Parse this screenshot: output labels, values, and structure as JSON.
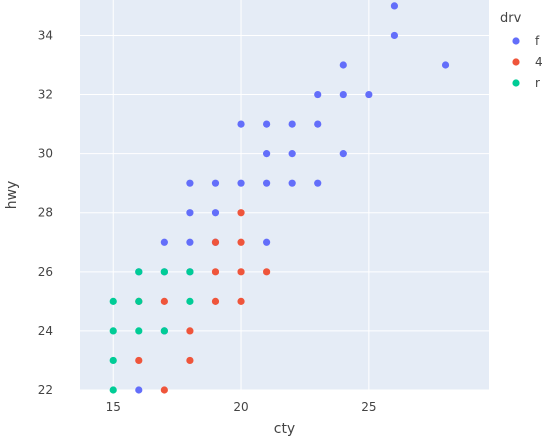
{
  "chart_data": {
    "type": "scatter",
    "title": "",
    "xlabel": "cty",
    "ylabel": "hwy",
    "xlim": [
      13.7,
      29.7
    ],
    "ylim": [
      22,
      35.2
    ],
    "xticks": [
      15,
      20,
      25
    ],
    "yticks": [
      22,
      24,
      26,
      28,
      30,
      32,
      34
    ],
    "grid": true,
    "legend": {
      "title": "drv",
      "placement": "right"
    },
    "colors": {
      "plot_bg": "#e5ecf6",
      "f": "#636efa",
      "4": "#ef553b",
      "r": "#00cc96"
    },
    "series": [
      {
        "name": "f",
        "color": "#636efa",
        "points": [
          [
            26,
            35
          ],
          [
            26,
            34
          ],
          [
            28,
            33
          ],
          [
            24,
            33
          ],
          [
            23,
            32
          ],
          [
            24,
            32
          ],
          [
            25,
            32
          ],
          [
            20,
            31
          ],
          [
            21,
            31
          ],
          [
            22,
            31
          ],
          [
            23,
            31
          ],
          [
            21,
            30
          ],
          [
            22,
            30
          ],
          [
            24,
            30
          ],
          [
            18,
            29
          ],
          [
            19,
            29
          ],
          [
            20,
            29
          ],
          [
            21,
            29
          ],
          [
            22,
            29
          ],
          [
            23,
            29
          ],
          [
            18,
            28
          ],
          [
            19,
            28
          ],
          [
            17,
            27
          ],
          [
            18,
            27
          ],
          [
            19,
            27
          ],
          [
            21,
            27
          ],
          [
            16,
            26
          ],
          [
            17,
            26
          ],
          [
            18,
            26
          ],
          [
            17,
            24
          ],
          [
            16,
            22
          ]
        ]
      },
      {
        "name": "4",
        "color": "#ef553b",
        "points": [
          [
            20,
            28
          ],
          [
            19,
            27
          ],
          [
            20,
            27
          ],
          [
            19,
            26
          ],
          [
            20,
            26
          ],
          [
            21,
            26
          ],
          [
            16,
            25
          ],
          [
            17,
            25
          ],
          [
            19,
            25
          ],
          [
            20,
            25
          ],
          [
            18,
            24
          ],
          [
            16,
            23
          ],
          [
            18,
            23
          ],
          [
            17,
            22
          ]
        ]
      },
      {
        "name": "r",
        "color": "#00cc96",
        "points": [
          [
            16,
            26
          ],
          [
            17,
            26
          ],
          [
            18,
            26
          ],
          [
            15,
            25
          ],
          [
            16,
            25
          ],
          [
            18,
            25
          ],
          [
            15,
            24
          ],
          [
            16,
            24
          ],
          [
            17,
            24
          ],
          [
            15,
            23
          ],
          [
            15,
            22
          ]
        ]
      }
    ]
  }
}
